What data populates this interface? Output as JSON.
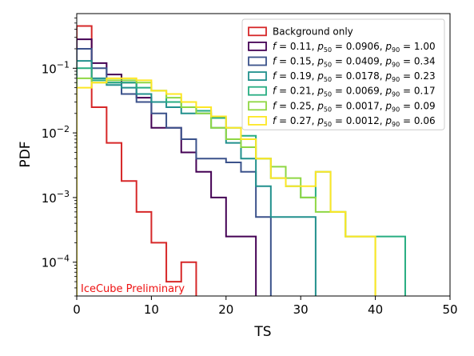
{
  "chart_data": {
    "type": "line",
    "xlabel": "TS",
    "ylabel": "PDF",
    "xlim": [
      0,
      50
    ],
    "ylim": [
      3e-05,
      0.7
    ],
    "yscale": "log",
    "xticks": [
      "0",
      "10",
      "20",
      "30",
      "40",
      "50"
    ],
    "yticks": [
      {
        "value": 0.0001,
        "base": "10",
        "exp": "−4"
      },
      {
        "value": 0.001,
        "base": "10",
        "exp": "−3"
      },
      {
        "value": 0.01,
        "base": "10",
        "exp": "−2"
      },
      {
        "value": 0.1,
        "base": "10",
        "exp": "−1"
      }
    ],
    "grid": false,
    "legend_position": "top-right",
    "watermark": {
      "text": "IceCube Preliminary",
      "color": "#ee1111"
    },
    "series": [
      {
        "name": "Background only",
        "label": {
          "plain": "Background only"
        },
        "color": "#d62728",
        "edges": [
          0,
          2,
          4,
          6,
          8,
          10,
          12,
          14,
          16
        ],
        "values": [
          0.45,
          0.025,
          0.007,
          0.0018,
          0.0006,
          0.0002,
          5e-05,
          0.0001
        ]
      },
      {
        "name": "f = 0.11, p50 = 0.0906, p90 = 1.00",
        "label": {
          "f": "0.11",
          "p50": "0.0906",
          "p90": "1.00"
        },
        "color": "#440154",
        "edges": [
          0,
          2,
          4,
          6,
          8,
          10,
          12,
          14,
          16,
          18,
          20,
          22,
          24
        ],
        "values": [
          0.28,
          0.12,
          0.08,
          0.06,
          0.035,
          0.012,
          0.012,
          0.005,
          0.0025,
          0.001,
          0.00025,
          0.00025
        ]
      },
      {
        "name": "f = 0.15, p50 = 0.0409, p90 = 0.34",
        "label": {
          "f": "0.15",
          "p50": "0.0409",
          "p90": "0.34"
        },
        "color": "#3b528b",
        "edges": [
          0,
          2,
          4,
          6,
          8,
          10,
          12,
          14,
          16,
          18,
          20,
          22,
          24,
          26
        ],
        "values": [
          0.2,
          0.1,
          0.06,
          0.04,
          0.03,
          0.02,
          0.012,
          0.008,
          0.004,
          0.004,
          0.0035,
          0.0025,
          0.0005
        ]
      },
      {
        "name": "f = 0.19, p50 = 0.0178, p90 = 0.23",
        "label": {
          "f": "0.19",
          "p50": "0.0178",
          "p90": "0.23"
        },
        "color": "#21908d",
        "edges": [
          0,
          2,
          4,
          6,
          8,
          10,
          12,
          14,
          16,
          18,
          20,
          22,
          24,
          26,
          28,
          30,
          32
        ],
        "values": [
          0.13,
          0.07,
          0.055,
          0.05,
          0.04,
          0.03,
          0.025,
          0.02,
          0.02,
          0.012,
          0.007,
          0.004,
          0.0015,
          0.0005,
          0.0005,
          0.0005
        ]
      },
      {
        "name": "f = 0.21, p50 = 0.0069, p90 = 0.17",
        "label": {
          "f": "0.21",
          "p50": "0.0069",
          "p90": "0.17"
        },
        "color": "#27ad81",
        "edges": [
          0,
          2,
          4,
          6,
          8,
          10,
          12,
          14,
          16,
          18,
          20,
          22,
          24,
          26,
          28,
          30,
          32,
          34,
          36,
          38,
          40,
          42,
          44
        ],
        "values": [
          0.1,
          0.065,
          0.06,
          0.06,
          0.05,
          0.045,
          0.03,
          0.025,
          0.022,
          0.017,
          0.012,
          0.009,
          0.004,
          0.002,
          0.0015,
          0.001,
          0.0025,
          0.0006,
          0.00025,
          0.00025,
          0.00025,
          0.00025
        ]
      },
      {
        "name": "f = 0.25, p50 = 0.0017, p90 = 0.09",
        "label": {
          "f": "0.25",
          "p50": "0.0017",
          "p90": "0.09"
        },
        "color": "#8fd744",
        "edges": [
          0,
          2,
          4,
          6,
          8,
          10,
          12,
          14,
          16,
          18,
          20,
          22,
          24,
          26,
          28,
          30,
          32,
          34,
          36,
          38,
          40
        ],
        "values": [
          0.07,
          0.06,
          0.065,
          0.065,
          0.06,
          0.045,
          0.035,
          0.025,
          0.02,
          0.012,
          0.008,
          0.006,
          0.004,
          0.003,
          0.002,
          0.001,
          0.0006,
          0.0006,
          0.00025,
          0.00025
        ]
      },
      {
        "name": "f = 0.27, p50 = 0.0012, p90 = 0.06",
        "label": {
          "f": "0.27",
          "p50": "0.0012",
          "p90": "0.06"
        },
        "color": "#fde725",
        "edges": [
          0,
          2,
          4,
          6,
          8,
          10,
          12,
          14,
          16,
          18,
          20,
          22,
          24,
          26,
          28,
          30,
          32,
          34,
          36,
          38,
          40
        ],
        "values": [
          0.05,
          0.06,
          0.07,
          0.07,
          0.065,
          0.045,
          0.04,
          0.03,
          0.025,
          0.018,
          0.012,
          0.008,
          0.004,
          0.002,
          0.0015,
          0.0015,
          0.0025,
          0.0006,
          0.00025,
          0.00025
        ]
      }
    ]
  }
}
